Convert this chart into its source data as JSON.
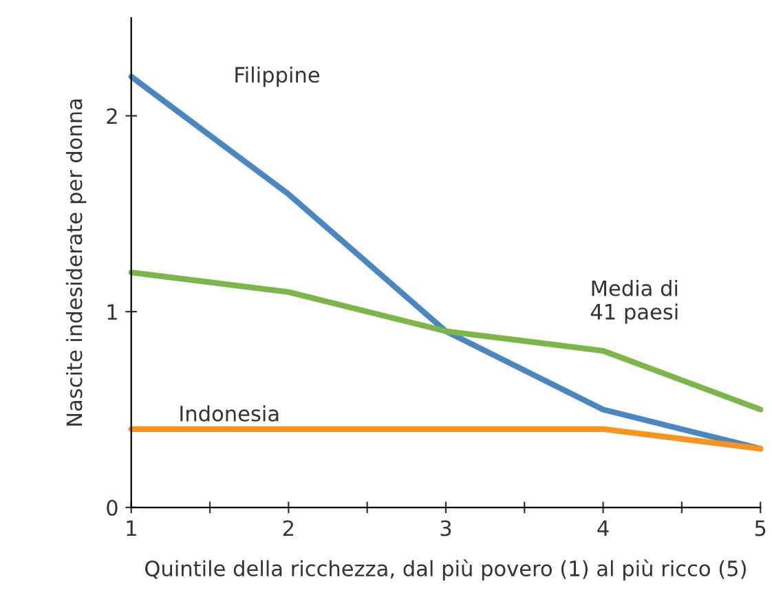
{
  "chart_data": {
    "type": "line",
    "xlabel": "Quintile della ricchezza, dal più povero (1) al più ricco (5)",
    "ylabel": "Nascite indesiderate per donna",
    "x": [
      1,
      2,
      3,
      4,
      5
    ],
    "series": [
      {
        "name": "Filippine",
        "color": "#4a87c2",
        "values": [
          2.2,
          1.6,
          0.9,
          0.5,
          0.3
        ]
      },
      {
        "name": "Media di\n41 paesi",
        "color": "#7ab648",
        "values": [
          1.2,
          1.1,
          0.9,
          0.8,
          0.5
        ]
      },
      {
        "name": "Indonesia",
        "color": "#f7941d",
        "values": [
          0.4,
          0.4,
          0.4,
          0.4,
          0.3
        ]
      }
    ],
    "xlim": [
      1,
      5
    ],
    "ylim": [
      0,
      2.5
    ],
    "xticks": [
      1,
      {
        "value": 1.5,
        "label": null
      },
      2,
      {
        "value": 2.5,
        "label": null
      },
      3,
      {
        "value": 3.5,
        "label": null
      },
      4,
      {
        "value": 4.5,
        "label": null
      },
      5
    ],
    "yticks": [
      0,
      1,
      2
    ],
    "grid": false,
    "legend": false,
    "marker": "none",
    "line_style": "solid"
  }
}
